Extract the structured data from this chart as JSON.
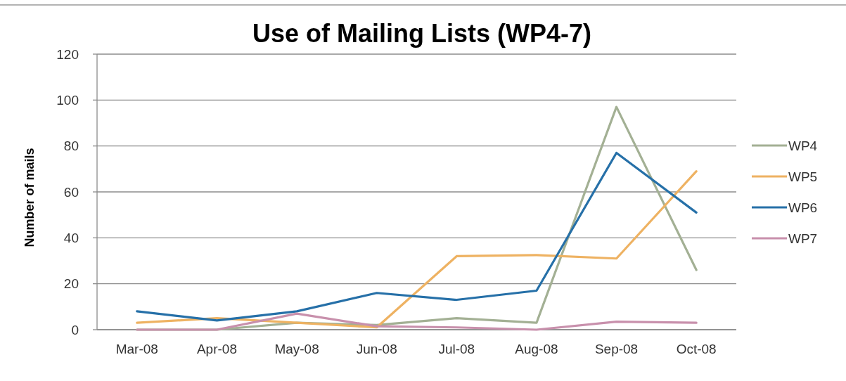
{
  "chart_data": {
    "type": "line",
    "title": "Use of Mailing Lists (WP4-7)",
    "ylabel": "Number of mails",
    "categories": [
      "Mar-08",
      "Apr-08",
      "May-08",
      "Jun-08",
      "Jul-08",
      "Aug-08",
      "Sep-08",
      "Oct-08"
    ],
    "series": [
      {
        "name": "WP4",
        "color": "#a3b094",
        "values": [
          0,
          0,
          3,
          2,
          5,
          3,
          97,
          26
        ]
      },
      {
        "name": "WP5",
        "color": "#eeb262",
        "values": [
          3,
          5,
          3,
          1,
          32,
          32.5,
          31,
          69
        ]
      },
      {
        "name": "WP6",
        "color": "#2670a8",
        "values": [
          8,
          4,
          8,
          16,
          13,
          17,
          77,
          51
        ]
      },
      {
        "name": "WP7",
        "color": "#c890ac",
        "values": [
          0,
          0,
          7,
          1.5,
          1,
          0,
          3.5,
          3
        ]
      }
    ],
    "ylim": [
      0,
      120
    ],
    "yticks": [
      0,
      20,
      40,
      60,
      80,
      100,
      120
    ],
    "grid": "y",
    "legend": "right"
  }
}
